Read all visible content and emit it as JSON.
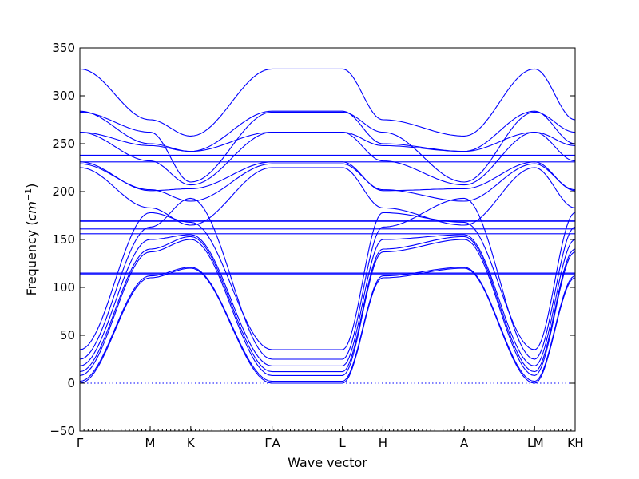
{
  "chart_data": {
    "type": "line",
    "xlabel": "Wave vector",
    "ylabel_prefix": "Frequency (",
    "ylabel_unit_base": "cm",
    "ylabel_unit_exp": "−1",
    "ylabel_suffix": ")",
    "ylim": [
      -50,
      350
    ],
    "yticks": [
      -50,
      0,
      50,
      100,
      150,
      200,
      250,
      300,
      350
    ],
    "grid": false,
    "legend": "none",
    "color": "#0000ff",
    "zero_reference_line": 0,
    "high_symmetry_points": [
      {
        "label": "Γ",
        "x": 0.0
      },
      {
        "label": "M",
        "x": 0.577
      },
      {
        "label": "K",
        "x": 0.91
      },
      {
        "label": "Γ",
        "x": 1.577
      },
      {
        "label": "A",
        "x": 1.577
      },
      {
        "label": "L",
        "x": 2.154
      },
      {
        "label": "H",
        "x": 2.487
      },
      {
        "label": "A",
        "x": 3.154
      },
      {
        "label": "L",
        "x": 3.731
      },
      {
        "label": "M",
        "x": 3.731
      },
      {
        "label": "K",
        "x": 4.064
      },
      {
        "label": "H",
        "x": 4.064
      }
    ],
    "segments": [
      {
        "from": "Γ",
        "to": "M",
        "x": [
          0.0,
          0.577
        ]
      },
      {
        "from": "M",
        "to": "K",
        "x": [
          0.577,
          0.91
        ]
      },
      {
        "from": "K",
        "to": "Γ",
        "x": [
          0.91,
          1.577
        ]
      },
      {
        "from": "A",
        "to": "L",
        "x": [
          1.577,
          2.154
        ]
      },
      {
        "from": "L",
        "to": "H",
        "x": [
          2.154,
          2.487
        ]
      },
      {
        "from": "H",
        "to": "A",
        "x": [
          2.487,
          3.154
        ]
      },
      {
        "from": "L",
        "to": "M",
        "x": [
          3.731,
          3.731
        ]
      },
      {
        "from": "K",
        "to": "H",
        "x": [
          4.064,
          4.064
        ]
      }
    ],
    "series": [
      {
        "values": [
          0,
          110,
          120,
          0,
          0,
          110,
          120,
          0,
          110,
          120
        ]
      },
      {
        "values": [
          2,
          112,
          121,
          2,
          2,
          112,
          121,
          2,
          112,
          121
        ]
      },
      {
        "values": [
          8,
          137,
          150,
          8,
          8,
          137,
          150,
          8,
          137,
          150
        ]
      },
      {
        "values": [
          12,
          140,
          153,
          12,
          12,
          140,
          153,
          12,
          140,
          153
        ]
      },
      {
        "values": [
          18,
          150,
          155,
          18,
          18,
          150,
          155,
          18,
          150,
          155
        ]
      },
      {
        "values": [
          25,
          163,
          193,
          25,
          25,
          163,
          193,
          25,
          163,
          193
        ]
      },
      {
        "values": [
          35,
          178,
          168,
          35,
          35,
          178,
          168,
          35,
          178,
          168
        ]
      },
      {
        "values": [
          115,
          115,
          115,
          115,
          115,
          115,
          115,
          115,
          115,
          115
        ]
      },
      {
        "values": [
          114,
          114,
          114,
          114,
          114,
          114,
          114,
          114,
          114,
          114
        ]
      },
      {
        "values": [
          156,
          156,
          156,
          156,
          156,
          156,
          156,
          156,
          156,
          156
        ]
      },
      {
        "values": [
          161,
          161,
          161,
          161,
          161,
          161,
          161,
          161,
          161,
          161
        ]
      },
      {
        "values": [
          169,
          169,
          169,
          169,
          169,
          169,
          169,
          169,
          169,
          169
        ]
      },
      {
        "values": [
          170,
          170,
          170,
          170,
          170,
          170,
          170,
          170,
          170,
          170
        ]
      },
      {
        "values": [
          225,
          183,
          165,
          225,
          225,
          183,
          165,
          225,
          183,
          165
        ]
      },
      {
        "values": [
          229,
          202,
          190,
          229,
          229,
          202,
          190,
          229,
          202,
          190
        ]
      },
      {
        "values": [
          231,
          201,
          203,
          231,
          231,
          201,
          203,
          231,
          201,
          203
        ]
      },
      {
        "values": [
          231,
          231,
          231,
          231,
          231,
          231,
          231,
          231,
          231,
          231
        ]
      },
      {
        "values": [
          238,
          238,
          238,
          238,
          238,
          238,
          238,
          238,
          238,
          238
        ]
      },
      {
        "values": [
          262,
          232,
          207,
          262,
          262,
          232,
          207,
          262,
          232,
          207
        ]
      },
      {
        "values": [
          262,
          248,
          242,
          262,
          262,
          248,
          242,
          262,
          248,
          242
        ]
      },
      {
        "values": [
          284,
          250,
          242,
          284,
          284,
          250,
          242,
          284,
          250,
          242
        ]
      },
      {
        "values": [
          283,
          262,
          210,
          283,
          283,
          262,
          210,
          283,
          262,
          210
        ]
      },
      {
        "values": [
          328,
          275,
          258,
          328,
          328,
          275,
          258,
          328,
          275,
          258
        ]
      }
    ]
  }
}
